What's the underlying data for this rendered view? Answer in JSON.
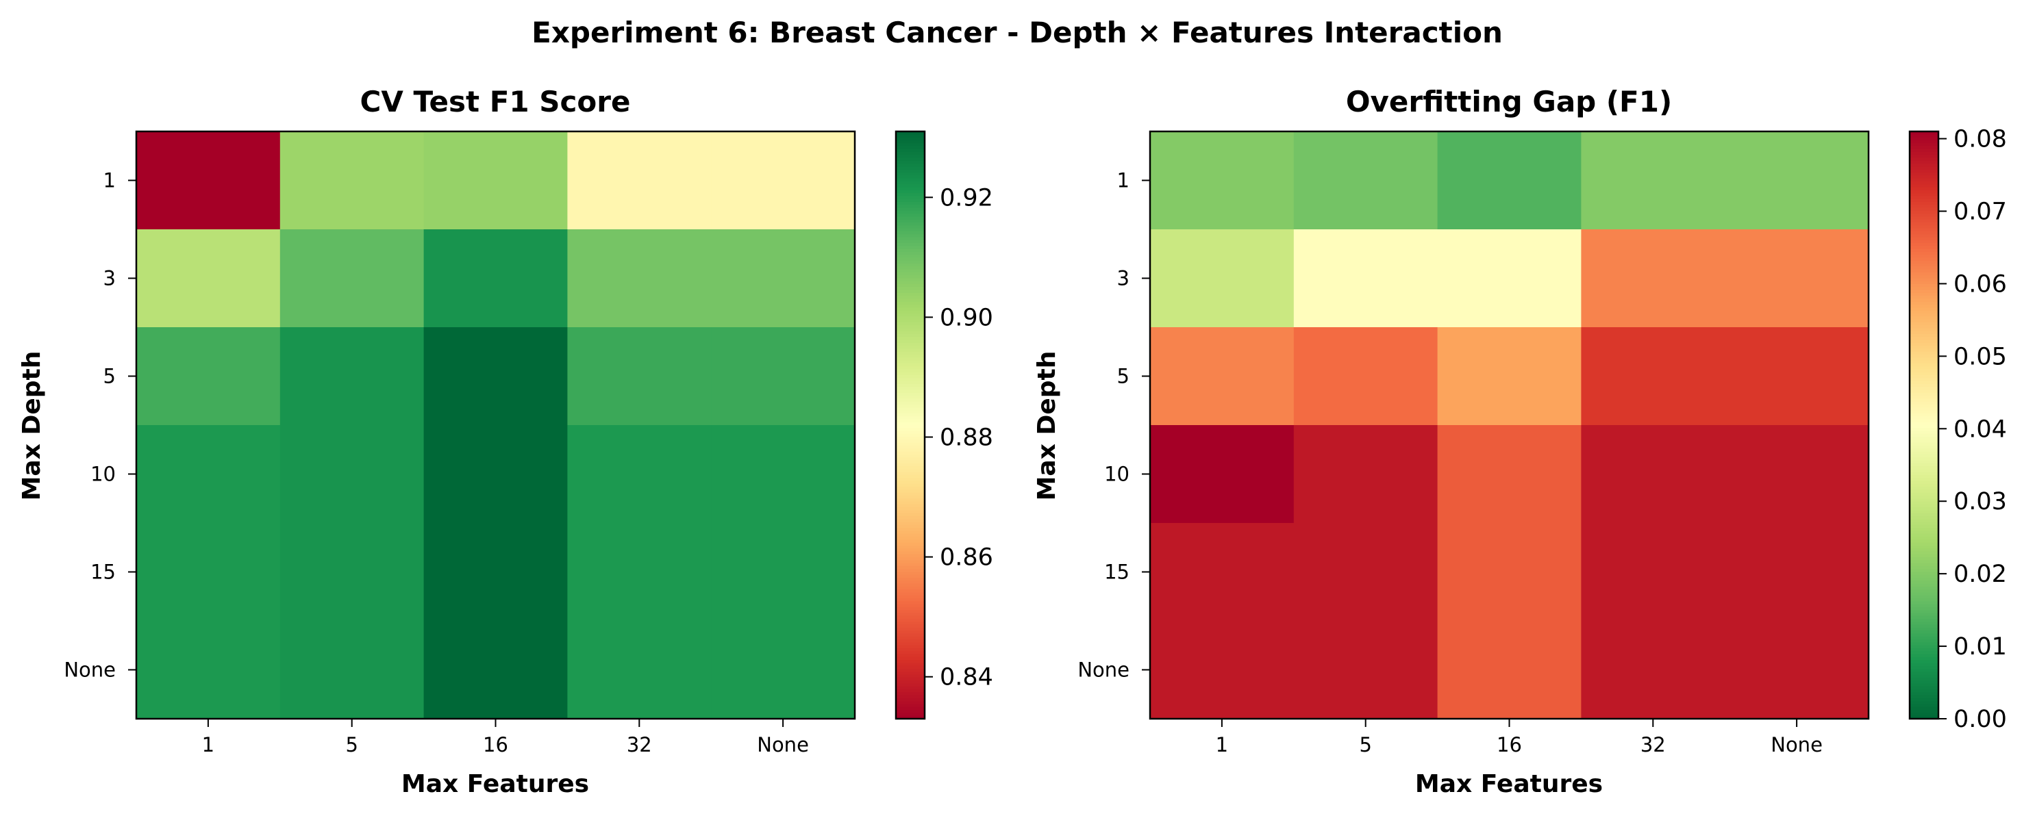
{
  "figure": {
    "title": "Experiment 6: Breast Cancer - Depth × Features Interaction"
  },
  "chart_data": [
    {
      "type": "heatmap",
      "title": "CV Test F1 Score",
      "xlabel": "Max Features",
      "ylabel": "Max Depth",
      "x_categories": [
        "1",
        "5",
        "16",
        "32",
        "None"
      ],
      "y_categories": [
        "1",
        "3",
        "5",
        "10",
        "15",
        "None"
      ],
      "values": [
        [
          0.833,
          0.903,
          0.904,
          0.879,
          0.879
        ],
        [
          0.898,
          0.912,
          0.922,
          0.909,
          0.909
        ],
        [
          0.916,
          0.922,
          0.931,
          0.917,
          0.917
        ],
        [
          0.921,
          0.922,
          0.931,
          0.921,
          0.921
        ],
        [
          0.921,
          0.922,
          0.931,
          0.921,
          0.921
        ],
        [
          0.921,
          0.922,
          0.931,
          0.921,
          0.921
        ]
      ],
      "colormap": "RdYlGn",
      "vmin": 0.833,
      "vmax": 0.931,
      "colorbar_ticks": [
        0.84,
        0.86,
        0.88,
        0.9,
        0.92
      ],
      "colorbar_tick_labels": [
        "0.84",
        "0.86",
        "0.88",
        "0.90",
        "0.92"
      ]
    },
    {
      "type": "heatmap",
      "title": "Overfitting Gap (F1)",
      "xlabel": "Max Features",
      "ylabel": "Max Depth",
      "x_categories": [
        "1",
        "5",
        "16",
        "32",
        "None"
      ],
      "y_categories": [
        "1",
        "3",
        "5",
        "10",
        "15",
        "None"
      ],
      "values": [
        [
          0.02,
          0.018,
          0.014,
          0.02,
          0.02
        ],
        [
          0.03,
          0.041,
          0.041,
          0.062,
          0.062
        ],
        [
          0.062,
          0.065,
          0.058,
          0.072,
          0.072
        ],
        [
          0.081,
          0.077,
          0.067,
          0.077,
          0.077
        ],
        [
          0.077,
          0.077,
          0.067,
          0.077,
          0.077
        ],
        [
          0.077,
          0.077,
          0.067,
          0.077,
          0.077
        ]
      ],
      "colormap": "RdYlGn_r",
      "vmin": 0.0,
      "vmax": 0.081,
      "colorbar_ticks": [
        0.0,
        0.01,
        0.02,
        0.03,
        0.04,
        0.05,
        0.06,
        0.07,
        0.08
      ],
      "colorbar_tick_labels": [
        "0.00",
        "0.01",
        "0.02",
        "0.03",
        "0.04",
        "0.05",
        "0.06",
        "0.07",
        "0.08"
      ]
    }
  ]
}
